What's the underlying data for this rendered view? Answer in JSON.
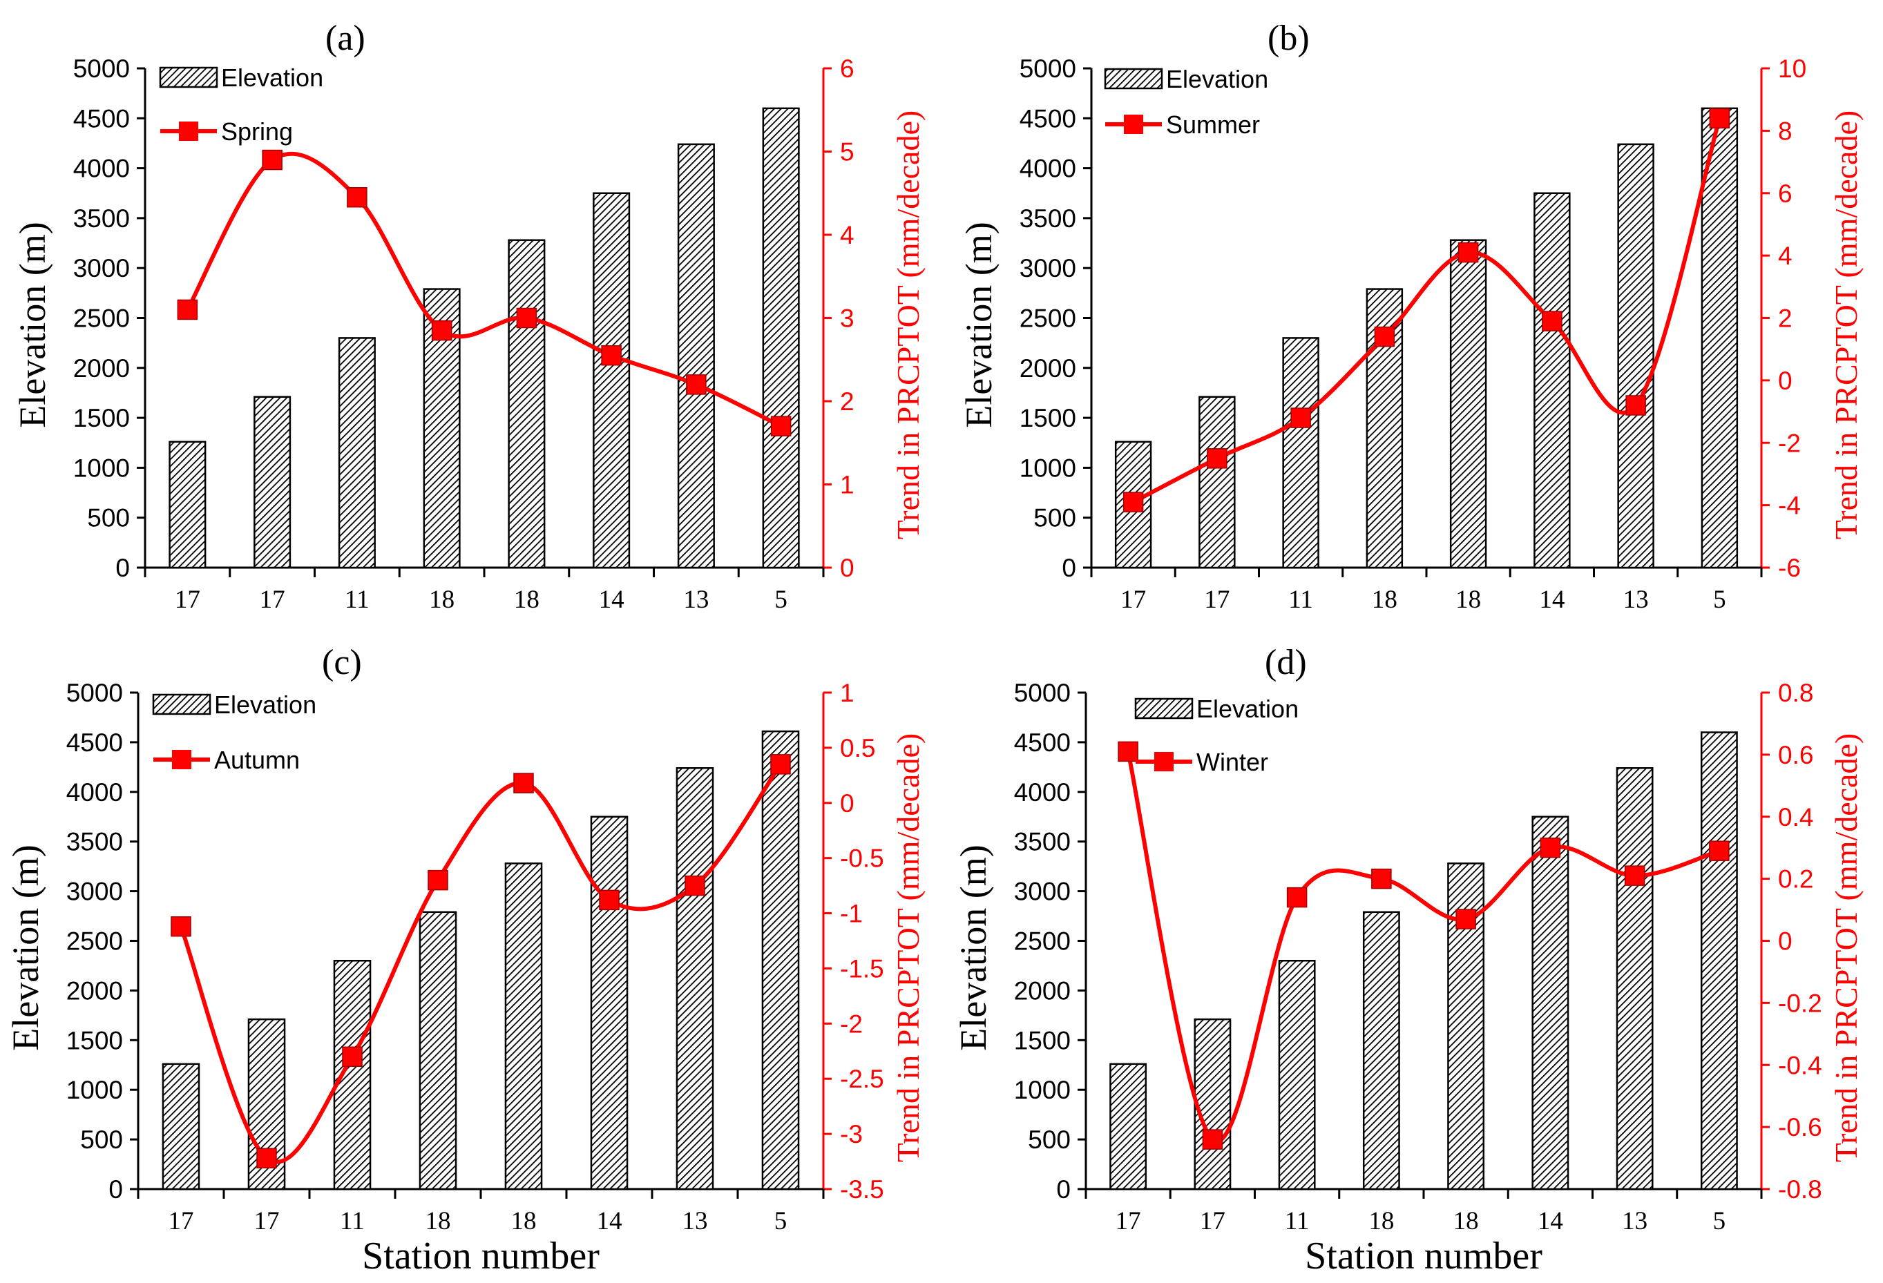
{
  "figure": {
    "shared_xlabel": "Station number"
  },
  "chart_data": [
    {
      "panel": "(a)",
      "type": "bar+line",
      "categories": [
        "17",
        "17",
        "11",
        "18",
        "18",
        "14",
        "13",
        "5"
      ],
      "bar_series": {
        "name": "Elevation",
        "values": [
          1260,
          1710,
          2300,
          2790,
          3280,
          3750,
          4240,
          4600
        ]
      },
      "line_series": {
        "name": "Spring",
        "values": [
          3.1,
          4.9,
          4.45,
          2.85,
          3.0,
          2.55,
          2.2,
          1.7
        ]
      },
      "ylabel_left": "Elevation (m)",
      "ylabel_right": "Trend  in PRCPTOT  (mm/decade)",
      "ylim_left": [
        0,
        5000
      ],
      "yticks_left": [
        "0",
        "500",
        "1000",
        "1500",
        "2000",
        "2500",
        "3000",
        "3500",
        "4000",
        "4500",
        "5000"
      ],
      "ylim_right": [
        0,
        6
      ],
      "yticks_right": [
        "0",
        "1",
        "2",
        "3",
        "4",
        "5",
        "6"
      ],
      "xlabel": "",
      "legend": "top-left",
      "colors": {
        "bar_fill": "#000000",
        "bar_hatch_bg": "#ffffff",
        "line": "#ff0000",
        "right_axis": "#ff0000"
      }
    },
    {
      "panel": "(b)",
      "type": "bar+line",
      "categories": [
        "17",
        "17",
        "11",
        "18",
        "18",
        "14",
        "13",
        "5"
      ],
      "bar_series": {
        "name": "Elevation",
        "values": [
          1260,
          1710,
          2300,
          2790,
          3280,
          3750,
          4240,
          4600
        ]
      },
      "line_series": {
        "name": "Summer",
        "values": [
          -3.9,
          -2.5,
          -1.2,
          1.4,
          4.1,
          1.9,
          -0.8,
          8.4
        ]
      },
      "ylabel_left": "Elevation (m)",
      "ylabel_right": "Trend  in PRCPTOT  (mm/decade)",
      "ylim_left": [
        0,
        5000
      ],
      "yticks_left": [
        "0",
        "500",
        "1000",
        "1500",
        "2000",
        "2500",
        "3000",
        "3500",
        "4000",
        "4500",
        "5000"
      ],
      "ylim_right": [
        -6,
        10
      ],
      "yticks_right": [
        "-6",
        "-4",
        "-2",
        "0",
        "2",
        "4",
        "6",
        "8",
        "10"
      ],
      "xlabel": "",
      "legend": "top-left",
      "colors": {
        "bar_fill": "#000000",
        "bar_hatch_bg": "#ffffff",
        "line": "#ff0000",
        "right_axis": "#ff0000"
      }
    },
    {
      "panel": "(c)",
      "type": "bar+line",
      "categories": [
        "17",
        "17",
        "11",
        "18",
        "18",
        "14",
        "13",
        "5"
      ],
      "bar_series": {
        "name": "Elevation",
        "values": [
          1260,
          1710,
          2300,
          2790,
          3280,
          3750,
          4240,
          4610
        ]
      },
      "line_series": {
        "name": "Autumn",
        "values": [
          -1.12,
          -3.22,
          -2.3,
          -0.7,
          0.18,
          -0.88,
          -0.75,
          0.35
        ]
      },
      "ylabel_left": "Elevation (m)",
      "ylabel_right": "Trend  in PRCPTOT  (mm/decade)",
      "ylim_left": [
        0,
        5000
      ],
      "yticks_left": [
        "0",
        "500",
        "1000",
        "1500",
        "2000",
        "2500",
        "3000",
        "3500",
        "4000",
        "4500",
        "5000"
      ],
      "ylim_right": [
        -3.5,
        1
      ],
      "yticks_right": [
        "-3.5",
        "-3",
        "-2.5",
        "-2",
        "-1.5",
        "-1",
        "-0.5",
        "0",
        "0.5",
        "1"
      ],
      "xlabel": "Station number",
      "legend": "top-left",
      "colors": {
        "bar_fill": "#000000",
        "bar_hatch_bg": "#ffffff",
        "line": "#ff0000",
        "right_axis": "#ff0000"
      }
    },
    {
      "panel": "(d)",
      "type": "bar+line",
      "categories": [
        "17",
        "17",
        "11",
        "18",
        "18",
        "14",
        "13",
        "5"
      ],
      "bar_series": {
        "name": "Elevation",
        "values": [
          1260,
          1710,
          2300,
          2790,
          3280,
          3750,
          4240,
          4600
        ]
      },
      "line_series": {
        "name": "Winter",
        "values": [
          0.61,
          -0.64,
          0.14,
          0.2,
          0.07,
          0.3,
          0.21,
          0.29
        ]
      },
      "ylabel_left": "Elevation (m)",
      "ylabel_right": "Trend  in PRCPTOT  (mm/decade)",
      "ylim_left": [
        0,
        5000
      ],
      "yticks_left": [
        "0",
        "500",
        "1000",
        "1500",
        "2000",
        "2500",
        "3000",
        "3500",
        "4000",
        "4500",
        "5000"
      ],
      "ylim_right": [
        -0.8,
        0.8
      ],
      "yticks_right": [
        "-0.8",
        "-0.6",
        "-0.4",
        "-0.2",
        "0",
        "0.2",
        "0.4",
        "0.6",
        "0.8"
      ],
      "xlabel": "Station number",
      "legend": "top-left",
      "colors": {
        "bar_fill": "#000000",
        "bar_hatch_bg": "#ffffff",
        "line": "#ff0000",
        "right_axis": "#ff0000"
      }
    }
  ]
}
